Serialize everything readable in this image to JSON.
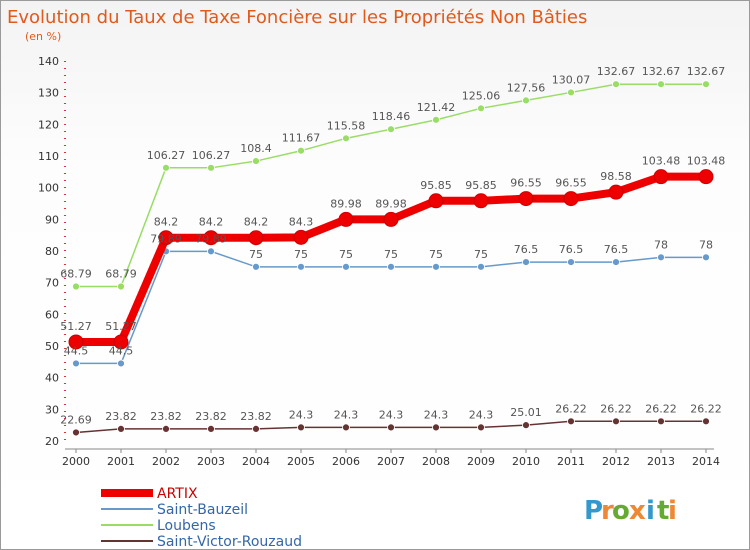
{
  "chart_data": {
    "type": "line",
    "title": "Evolution du Taux de Taxe Foncière sur les Propriétés Non Bâties",
    "subtitle": "(en %)",
    "ylim": [
      20,
      140
    ],
    "y_ticks": [
      "140",
      "130",
      "120",
      "110",
      "100",
      "90",
      "80",
      "70",
      "60",
      "50",
      "40",
      "30",
      "20"
    ],
    "categories": [
      "2000",
      "2001",
      "2002",
      "2003",
      "2004",
      "2005",
      "2006",
      "2007",
      "2008",
      "2009",
      "2010",
      "2011",
      "2012",
      "2013",
      "2014"
    ],
    "series": [
      {
        "name": "Loubens",
        "color": "#99dd66",
        "values": [
          68.79,
          68.79,
          106.27,
          106.27,
          108.4,
          111.67,
          115.58,
          118.46,
          121.42,
          125.06,
          127.56,
          130.07,
          132.67,
          132.67,
          132.67
        ],
        "labels": [
          "68.79",
          "68.79",
          "106.27",
          "106.27",
          "108.4",
          "111.67",
          "115.58",
          "118.46",
          "121.42",
          "125.06",
          "127.56",
          "130.07",
          "132.67",
          "132.67",
          "132.67"
        ]
      },
      {
        "name": "Saint-Bauzeil",
        "color": "#6699cc",
        "values": [
          44.5,
          44.5,
          79.89,
          79.89,
          75,
          75,
          75,
          75,
          75,
          75,
          76.5,
          76.5,
          76.5,
          78,
          78
        ],
        "labels": [
          "44.5",
          "44.5",
          "79.89",
          "79.89",
          "75",
          "75",
          "75",
          "75",
          "75",
          "75",
          "76.5",
          "76.5",
          "76.5",
          "78",
          "78"
        ]
      },
      {
        "name": "Saint-Victor-Rouzaud",
        "color": "#663333",
        "values": [
          22.69,
          23.82,
          23.82,
          23.82,
          23.82,
          24.3,
          24.3,
          24.3,
          24.3,
          24.3,
          25.01,
          26.22,
          26.22,
          26.22,
          26.22
        ],
        "labels": [
          "22.69",
          "23.82",
          "23.82",
          "23.82",
          "23.82",
          "24.3",
          "24.3",
          "24.3",
          "24.3",
          "24.3",
          "25.01",
          "26.22",
          "26.22",
          "26.22",
          "26.22"
        ]
      },
      {
        "name": "ARTIX",
        "color": "#ee0000",
        "values": [
          51.27,
          51.27,
          84.2,
          84.2,
          84.2,
          84.3,
          89.98,
          89.98,
          95.85,
          95.85,
          96.55,
          96.55,
          98.58,
          103.48,
          103.48
        ],
        "labels": [
          "51.27",
          "51.27",
          "84.2",
          "84.2",
          "84.2",
          "84.3",
          "89.98",
          "89.98",
          "95.85",
          "95.85",
          "96.55",
          "96.55",
          "98.58",
          "103.48",
          "103.48"
        ]
      }
    ],
    "legend": [
      "ARTIX",
      "Saint-Bauzeil",
      "Loubens",
      "Saint-Victor-Rouzaud"
    ],
    "legend_position": "bottom-left",
    "grid": false
  },
  "branding": {
    "logo_text": "Proxiti",
    "logo_letters": [
      "P",
      "r",
      "o",
      "x",
      "i",
      "t",
      "i"
    ],
    "logo_colors": [
      "#3399cc",
      "#ee8833",
      "#66aa33",
      "#ee8833",
      "#3399cc",
      "#66aa33",
      "#ee8833"
    ]
  }
}
